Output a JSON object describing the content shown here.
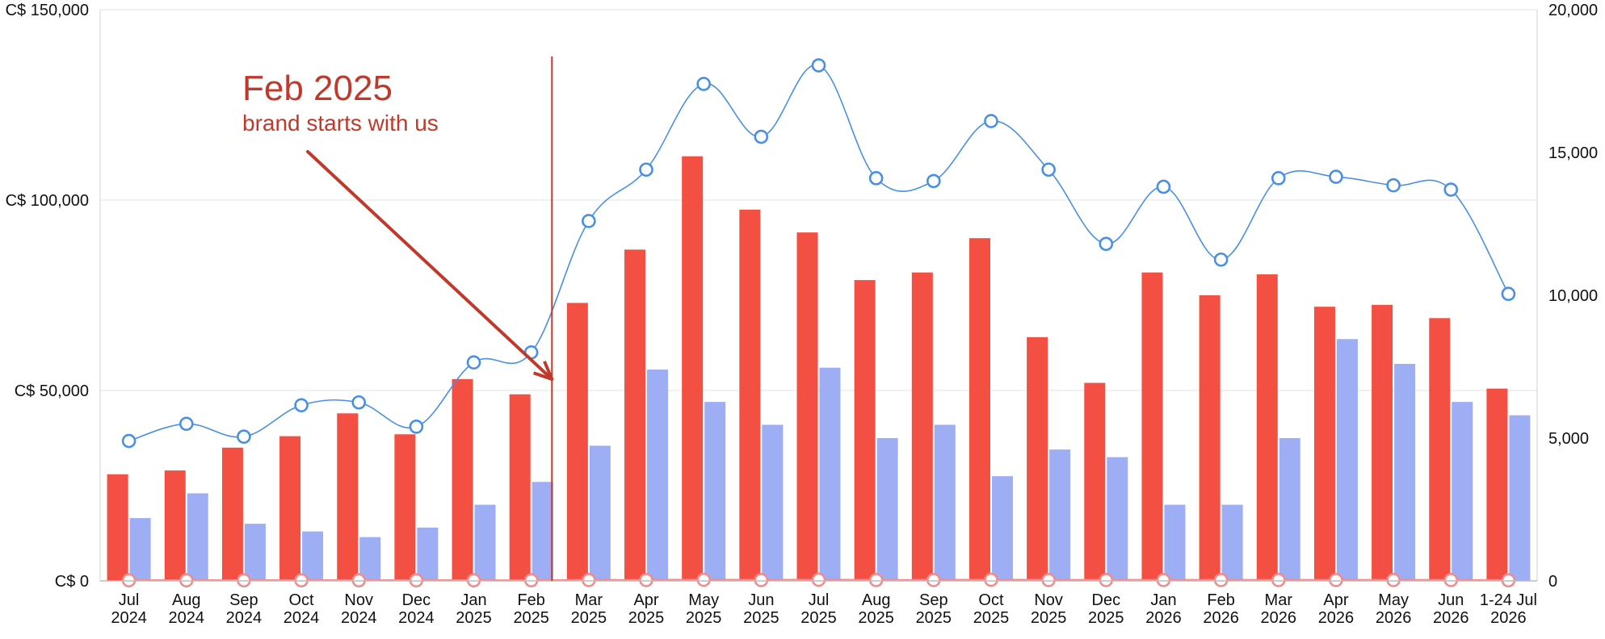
{
  "chart_data": {
    "type": "bar",
    "categories": [
      [
        "Jul",
        "2024"
      ],
      [
        "Aug",
        "2024"
      ],
      [
        "Sep",
        "2024"
      ],
      [
        "Oct",
        "2024"
      ],
      [
        "Nov",
        "2024"
      ],
      [
        "Dec",
        "2024"
      ],
      [
        "Jan",
        "2025"
      ],
      [
        "Feb",
        "2025"
      ],
      [
        "Mar",
        "2025"
      ],
      [
        "Apr",
        "2025"
      ],
      [
        "May",
        "2025"
      ],
      [
        "Jun",
        "2025"
      ],
      [
        "Jul",
        "2025"
      ],
      [
        "Aug",
        "2025"
      ],
      [
        "Sep",
        "2025"
      ],
      [
        "Oct",
        "2025"
      ],
      [
        "Nov",
        "2025"
      ],
      [
        "Dec",
        "2025"
      ],
      [
        "Jan",
        "2026"
      ],
      [
        "Feb",
        "2026"
      ],
      [
        "Mar",
        "2026"
      ],
      [
        "Apr",
        "2026"
      ],
      [
        "May",
        "2026"
      ],
      [
        "Jun",
        "2026"
      ],
      [
        "1-24 Jul",
        "2026"
      ]
    ],
    "y_left": {
      "ticks": [
        "C$ 0",
        "C$ 50,000",
        "C$ 100,000",
        "C$ 150,000"
      ],
      "tick_values": [
        0,
        50000,
        100000,
        150000
      ],
      "ylim": [
        0,
        150000
      ]
    },
    "y_right": {
      "ticks": [
        "0",
        "5,000",
        "10,000",
        "15,000",
        "20,000"
      ],
      "tick_values": [
        0,
        5000,
        10000,
        15000,
        20000
      ],
      "ylim": [
        0,
        20000
      ]
    },
    "grid": true,
    "series": [
      {
        "kind": "bar",
        "axis": "left",
        "color": "#f44f43",
        "values": [
          28000,
          29000,
          35000,
          38000,
          44000,
          38500,
          53000,
          49000,
          73000,
          87000,
          111500,
          97500,
          91500,
          79000,
          81000,
          90000,
          64000,
          52000,
          81000,
          75000,
          80500,
          72000,
          72500,
          69000,
          50500
        ]
      },
      {
        "kind": "bar",
        "axis": "left",
        "color": "#9eaef5",
        "values": [
          16500,
          23000,
          15000,
          13000,
          11500,
          14000,
          20000,
          26000,
          35500,
          55500,
          47000,
          41000,
          56000,
          37500,
          41000,
          27500,
          34500,
          32500,
          20000,
          20000,
          37500,
          63500,
          57000,
          47000,
          43500
        ]
      },
      {
        "kind": "line",
        "axis": "right",
        "color": "#4a90e2",
        "smooth": true,
        "values": [
          4900,
          5500,
          5050,
          6150,
          6250,
          5400,
          7650,
          8000,
          12600,
          14400,
          17400,
          15550,
          18050,
          14100,
          14000,
          16100,
          14400,
          11800,
          13800,
          11250,
          14100,
          14150,
          13850,
          13700,
          10050
        ]
      },
      {
        "kind": "line",
        "axis": "right",
        "color": "#f28b8b",
        "smooth": true,
        "values": [
          20,
          20,
          20,
          20,
          20,
          20,
          20,
          20,
          30,
          30,
          40,
          30,
          40,
          30,
          30,
          40,
          30,
          30,
          30,
          30,
          30,
          30,
          30,
          30,
          20
        ]
      }
    ],
    "annotation": {
      "title": "Feb 2025",
      "subtitle": "brand starts with us",
      "color": "#c0392b",
      "at_category": "Feb 2025"
    }
  }
}
